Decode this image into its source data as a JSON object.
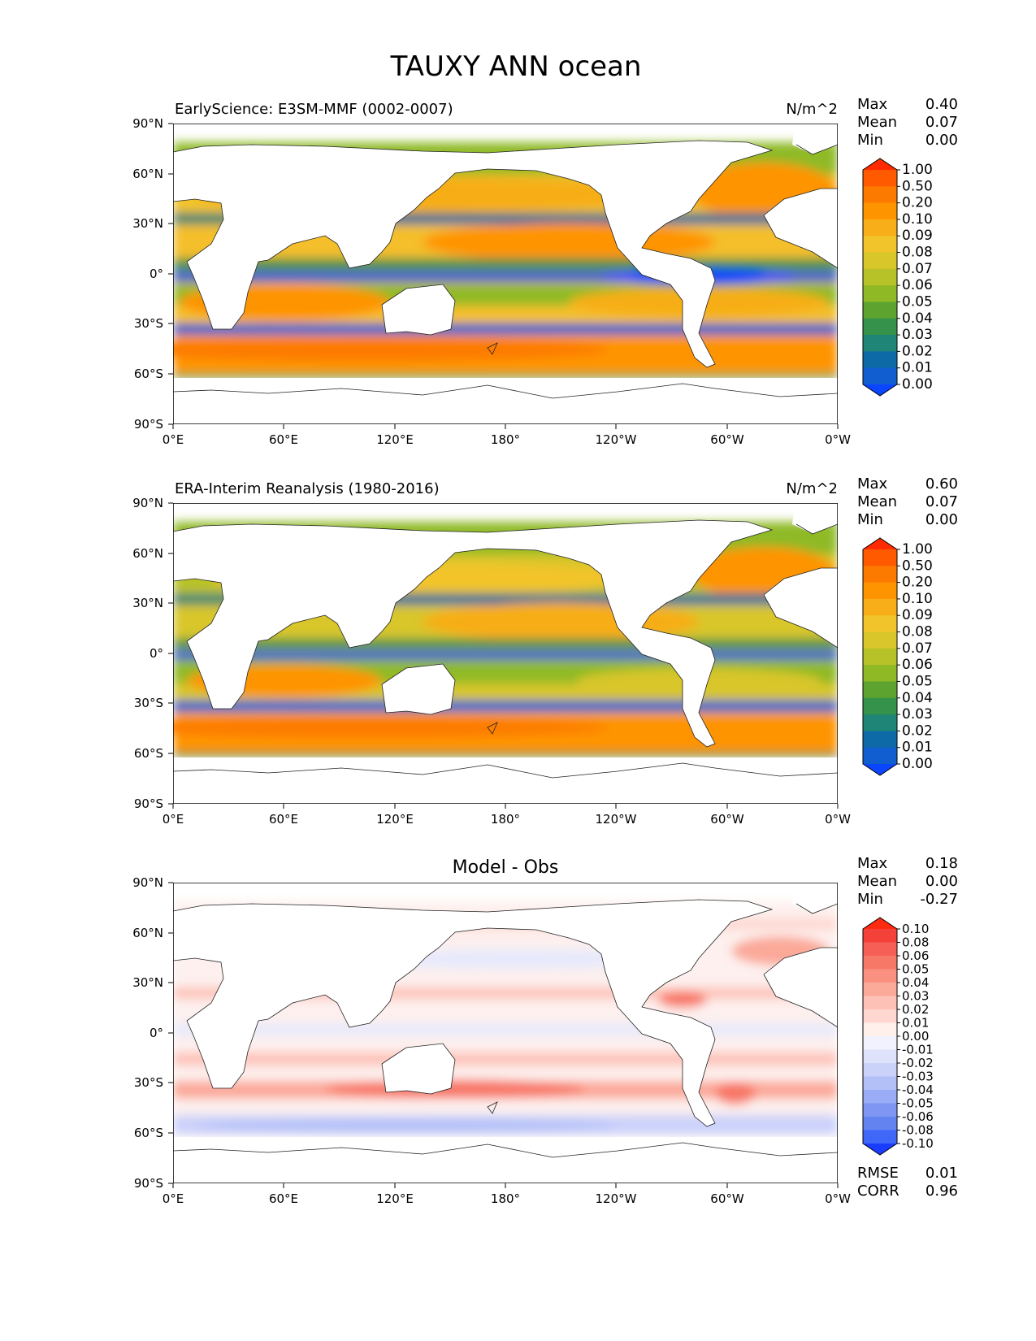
{
  "figure_title": "TAUXY ANN ocean",
  "chart_data": [
    {
      "type": "contour-map",
      "title": "EarlyScience: E3SM-MMF (0002-0007)",
      "units": "N/m^2",
      "stats": {
        "max_label": "Max",
        "max": "0.40",
        "mean_label": "Mean",
        "mean": "0.07",
        "min_label": "Min",
        "min": "0.00"
      },
      "x_ticks": [
        "0°E",
        "60°E",
        "120°E",
        "180°",
        "120°W",
        "60°W",
        "0°W"
      ],
      "y_ticks": [
        "90°N",
        "60°N",
        "30°N",
        "0°",
        "30°S",
        "60°S",
        "90°S"
      ],
      "xlim": [
        0,
        360
      ],
      "ylim": [
        -90,
        90
      ],
      "colorbar": {
        "levels": [
          "1.00",
          "0.50",
          "0.20",
          "0.10",
          "0.09",
          "0.08",
          "0.07",
          "0.06",
          "0.05",
          "0.04",
          "0.03",
          "0.02",
          "0.01",
          "0.00"
        ],
        "colors": [
          "#ff2a00",
          "#ff5a00",
          "#fd7a00",
          "#fe9400",
          "#f7ae19",
          "#f2c42b",
          "#d8c62b",
          "#b7c228",
          "#8fba25",
          "#5ca32f",
          "#35924a",
          "#1e8577",
          "#0e6aa6",
          "#105ecf",
          "#0a45ff"
        ]
      }
    },
    {
      "type": "contour-map",
      "title": "ERA-Interim Reanalysis (1980-2016)",
      "units": "N/m^2",
      "stats": {
        "max_label": "Max",
        "max": "0.60",
        "mean_label": "Mean",
        "mean": "0.07",
        "min_label": "Min",
        "min": "0.00"
      },
      "x_ticks": [
        "0°E",
        "60°E",
        "120°E",
        "180°",
        "120°W",
        "60°W",
        "0°W"
      ],
      "y_ticks": [
        "90°N",
        "60°N",
        "30°N",
        "0°",
        "30°S",
        "60°S",
        "90°S"
      ],
      "xlim": [
        0,
        360
      ],
      "ylim": [
        -90,
        90
      ],
      "colorbar": {
        "levels": [
          "1.00",
          "0.50",
          "0.20",
          "0.10",
          "0.09",
          "0.08",
          "0.07",
          "0.06",
          "0.05",
          "0.04",
          "0.03",
          "0.02",
          "0.01",
          "0.00"
        ],
        "colors": [
          "#ff2a00",
          "#ff5a00",
          "#fd7a00",
          "#fe9400",
          "#f7ae19",
          "#f2c42b",
          "#d8c62b",
          "#b7c228",
          "#8fba25",
          "#5ca32f",
          "#35924a",
          "#1e8577",
          "#0e6aa6",
          "#105ecf",
          "#0a45ff"
        ]
      }
    },
    {
      "type": "contour-map",
      "title": "Model - Obs",
      "units": "",
      "stats": {
        "max_label": "Max",
        "max": "0.18",
        "mean_label": "Mean",
        "mean": "0.00",
        "min_label": "Min",
        "min": "-0.27"
      },
      "metrics": {
        "rmse_label": "RMSE",
        "rmse": "0.01",
        "corr_label": "CORR",
        "corr": "0.96"
      },
      "x_ticks": [
        "0°E",
        "60°E",
        "120°E",
        "180°",
        "120°W",
        "60°W",
        "0°W"
      ],
      "y_ticks": [
        "90°N",
        "60°N",
        "30°N",
        "0°",
        "30°S",
        "60°S",
        "90°S"
      ],
      "xlim": [
        0,
        360
      ],
      "ylim": [
        -90,
        90
      ],
      "colorbar": {
        "levels": [
          "0.10",
          "0.08",
          "0.06",
          "0.05",
          "0.04",
          "0.03",
          "0.02",
          "0.01",
          "0.00",
          "-0.01",
          "-0.02",
          "-0.03",
          "-0.04",
          "-0.05",
          "-0.06",
          "-0.08",
          "-0.10"
        ],
        "colors": [
          "#ff2a10",
          "#f4423a",
          "#f65f55",
          "#f87868",
          "#fa907f",
          "#fba999",
          "#fdc1b6",
          "#fed8d0",
          "#fff0ec",
          "#f2f2ff",
          "#dfe2fb",
          "#cbd2fa",
          "#b3c0f8",
          "#9aacf5",
          "#7f97f3",
          "#6383f1",
          "#3f67f8",
          "#1a3cff"
        ]
      }
    }
  ]
}
